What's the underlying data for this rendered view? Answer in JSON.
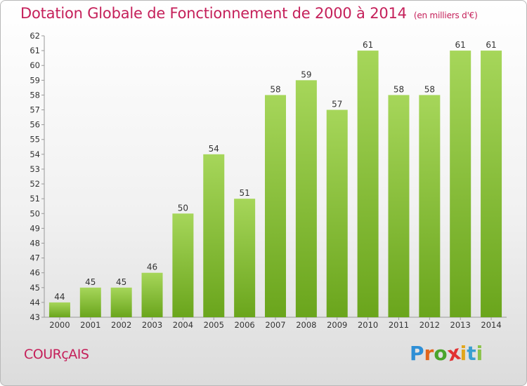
{
  "header": {
    "title": "Dotation Globale de Fonctionnement de 2000 à 2014",
    "subtitle": "(en milliers d'€)"
  },
  "footer": {
    "commune": "COURçAIS",
    "brand": [
      "P",
      "r",
      "o",
      "x",
      "i",
      "t",
      "i"
    ],
    "brand_colors": [
      "#2e8fd6",
      "#e2651c",
      "#4aa42c",
      "#e23232",
      "#e2a61c",
      "#3a9fd0",
      "#8bc34a"
    ]
  },
  "colors": {
    "bar_light": "#a6d65a",
    "bar_dark": "#6aa51c",
    "accent": "#c5205a"
  },
  "chart_data": {
    "type": "bar",
    "categories": [
      "2000",
      "2001",
      "2002",
      "2003",
      "2004",
      "2005",
      "2006",
      "2007",
      "2008",
      "2009",
      "2010",
      "2011",
      "2012",
      "2013",
      "2014"
    ],
    "values": [
      44,
      45,
      45,
      46,
      50,
      54,
      51,
      58,
      59,
      57,
      61,
      58,
      58,
      61,
      61
    ],
    "ylim": [
      43,
      62
    ],
    "yticks": [
      43,
      44,
      45,
      46,
      47,
      48,
      49,
      50,
      51,
      52,
      53,
      54,
      55,
      56,
      57,
      58,
      59,
      60,
      61,
      62
    ],
    "grid": false
  }
}
